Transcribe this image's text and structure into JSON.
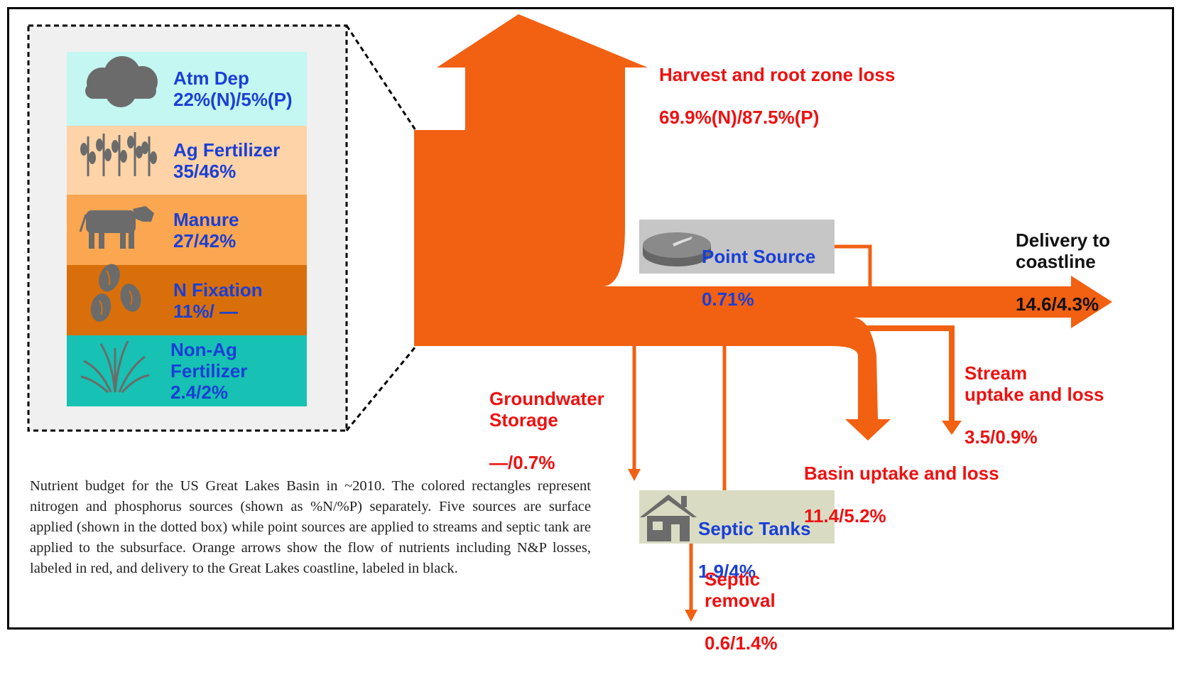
{
  "sources": [
    {
      "name": "Atm Dep",
      "value": "22%(N)/5%(P)",
      "color": "#c4f6f2",
      "icon": "cloud-icon"
    },
    {
      "name": "Ag Fertilizer",
      "value": "35/46%",
      "color": "#fdd3a7",
      "icon": "crop-icon"
    },
    {
      "name": "Manure",
      "value": "27/42%",
      "color": "#fba650",
      "icon": "cow-icon"
    },
    {
      "name": "N Fixation",
      "value": "11%/ —",
      "color": "#d96f0a",
      "icon": "bean-icon"
    },
    {
      "name": "Non-Ag\nFertilizer",
      "value": "2.4/2%",
      "color": "#17c1b3",
      "icon": "grass-icon"
    }
  ],
  "point_source": {
    "name": "Point Source",
    "value": "0.71%",
    "icon": "pipe-icon"
  },
  "septic_tanks": {
    "name": "Septic Tanks",
    "value": "1.9/4%",
    "icon": "house-icon"
  },
  "losses": {
    "harvest": {
      "name": "Harvest and root zone loss",
      "value": "69.9%(N)/87.5%(P)"
    },
    "groundwater": {
      "name": "Groundwater\nStorage",
      "value": "—/0.7%"
    },
    "basin": {
      "name": "Basin uptake and loss",
      "value": "11.4/5.2%"
    },
    "stream": {
      "name": "Stream\nuptake and loss",
      "value": "3.5/0.9%"
    },
    "septic_removal": {
      "name": "Septic\nremoval",
      "value": "0.6/1.4%"
    }
  },
  "delivery": {
    "name": "Delivery to\ncoastline",
    "value": "14.6/4.3%"
  },
  "caption": "Nutrient budget for the US Great Lakes Basin in ~2010. The colored rectangles represent nitrogen and phosphorus sources (shown as %N/%P) separately. Five sources are surface applied (shown in the dotted box) while point sources are applied to streams and septic tank are applied to the subsurface. Orange arrows show the flow of nutrients including N&P losses, labeled in red, and delivery to the Great Lakes coastline, labeled in black.",
  "colors": {
    "flow": "#f26012",
    "loss_text": "#ee1111",
    "source_text": "#1a3fd6",
    "gray_box": "#c6c6c6",
    "septic_box": "#d9dcc3"
  }
}
